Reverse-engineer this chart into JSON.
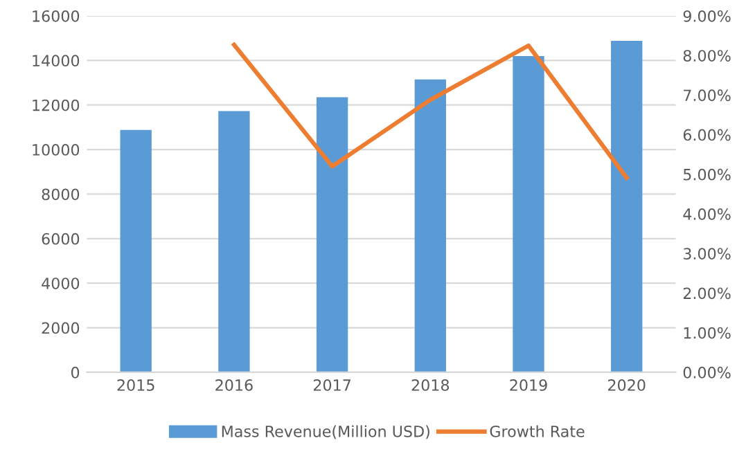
{
  "chart_data": {
    "type": "bar",
    "categories": [
      "2015",
      "2016",
      "2017",
      "2018",
      "2019",
      "2020"
    ],
    "series": [
      {
        "name": "Mass Revenue(Million USD)",
        "color": "#5b9bd5",
        "values": [
          10880,
          11730,
          12350,
          13150,
          14200,
          14880
        ]
      },
      {
        "name": "Growth Rate",
        "type": "line",
        "axis": "y2",
        "color": "#ed7d31",
        "values": [
          null,
          8.27,
          5.2,
          6.88,
          8.25,
          4.91
        ]
      }
    ],
    "ylim": [
      0,
      16000
    ],
    "yticks": [
      0,
      2000,
      4000,
      6000,
      8000,
      10000,
      12000,
      14000,
      16000
    ],
    "y2lim": [
      0,
      9
    ],
    "y2ticks": [
      {
        "value": 0,
        "label": "0.00%"
      },
      {
        "value": 1,
        "label": "1.00%"
      },
      {
        "value": 2,
        "label": "2.00%"
      },
      {
        "value": 3,
        "label": "3.00%"
      },
      {
        "value": 4,
        "label": "4.00%"
      },
      {
        "value": 5,
        "label": "5.00%"
      },
      {
        "value": 6,
        "label": "6.00%"
      },
      {
        "value": 7,
        "label": "7.00%"
      },
      {
        "value": 8,
        "label": "8.00%"
      },
      {
        "value": 9,
        "label": "9.00%"
      }
    ],
    "grid": "y",
    "legend": "bottom",
    "marker": "none"
  }
}
